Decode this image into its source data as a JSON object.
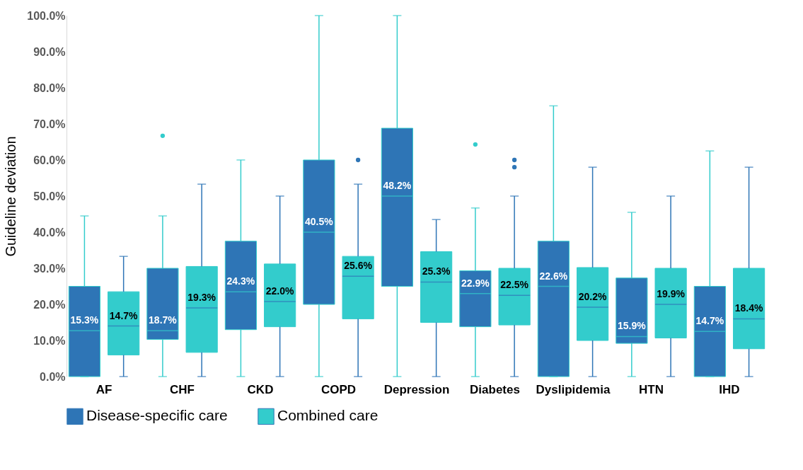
{
  "chart_data": {
    "type": "box",
    "ylabel": "Guideline deviation",
    "categories": [
      "AF",
      "CHF",
      "CKD",
      "COPD",
      "Depression",
      "Diabetes",
      "Dyslipidemia",
      "HTN",
      "IHD"
    ],
    "ylim": [
      0,
      100
    ],
    "yticks": [
      {
        "value": 0,
        "label": "0.0%"
      },
      {
        "value": 10,
        "label": "10.0%"
      },
      {
        "value": 20,
        "label": "20.0%"
      },
      {
        "value": 30,
        "label": "30.0%"
      },
      {
        "value": 40,
        "label": "40.0%"
      },
      {
        "value": 50,
        "label": "50.0%"
      },
      {
        "value": 60,
        "label": "60.0%"
      },
      {
        "value": 70,
        "label": "70.0%"
      },
      {
        "value": 80,
        "label": "80.0%"
      },
      {
        "value": 90,
        "label": "90.0%"
      },
      {
        "value": 100,
        "label": "100.0%"
      }
    ],
    "legend": "bottom",
    "series": [
      {
        "name": "Disease-specific care",
        "color": "#2e75b6",
        "value_labels": [
          "15.3%",
          "18.7%",
          "24.3%",
          "40.5%",
          "48.2%",
          "22.9%",
          "22.6%",
          "15.9%",
          "14.7%"
        ],
        "boxes": [
          {
            "low": 0,
            "q1": 0,
            "median": 12.7,
            "q3": 25,
            "high": 44.5
          },
          {
            "low": 0,
            "q1": 10.3,
            "median": 12.7,
            "q3": 30,
            "high": 44.5,
            "outliers": [
              66.7
            ]
          },
          {
            "low": 0,
            "q1": 13,
            "median": 23.5,
            "q3": 37.5,
            "high": 60
          },
          {
            "low": 0,
            "q1": 20,
            "median": 40,
            "q3": 60,
            "high": 100
          },
          {
            "low": 0,
            "q1": 25,
            "median": 50,
            "q3": 68.8,
            "high": 100
          },
          {
            "low": 0,
            "q1": 13.8,
            "median": 23,
            "q3": 29.3,
            "high": 46.7,
            "outliers": [
              64.3
            ]
          },
          {
            "low": 0,
            "q1": 0,
            "median": 25,
            "q3": 37.5,
            "high": 75
          },
          {
            "low": 0,
            "q1": 9.2,
            "median": 11.1,
            "q3": 27.3,
            "high": 45.5
          },
          {
            "low": 0,
            "q1": 0,
            "median": 12.5,
            "q3": 25,
            "high": 62.5
          }
        ]
      },
      {
        "name": "Combined care",
        "color": "#33cccc",
        "value_labels": [
          "14.7%",
          "19.3%",
          "22.0%",
          "25.6%",
          "25.3%",
          "22.5%",
          "20.2%",
          "19.9%",
          "18.4%"
        ],
        "boxes": [
          {
            "low": 0,
            "q1": 6,
            "median": 14,
            "q3": 23.5,
            "high": 33.3
          },
          {
            "low": 0,
            "q1": 6.7,
            "median": 19,
            "q3": 30.5,
            "high": 53.3
          },
          {
            "low": 0,
            "q1": 13.8,
            "median": 20.8,
            "q3": 31.2,
            "high": 50
          },
          {
            "low": 0,
            "q1": 16,
            "median": 27.8,
            "q3": 33.3,
            "high": 53.3,
            "outliers": [
              60
            ]
          },
          {
            "low": 0,
            "q1": 15,
            "median": 26.2,
            "q3": 34.6,
            "high": 43.5
          },
          {
            "low": 0,
            "q1": 14.3,
            "median": 22.5,
            "q3": 30,
            "high": 50,
            "outliers": [
              58,
              60
            ]
          },
          {
            "low": 0,
            "q1": 10,
            "median": 19.2,
            "q3": 30.2,
            "high": 58
          },
          {
            "low": 0,
            "q1": 10.7,
            "median": 20,
            "q3": 30,
            "high": 50
          },
          {
            "low": 0,
            "q1": 7.7,
            "median": 16,
            "q3": 30,
            "high": 58
          }
        ]
      }
    ]
  }
}
